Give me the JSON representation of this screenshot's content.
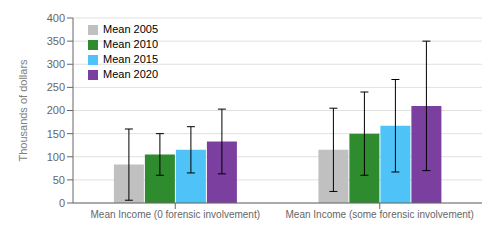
{
  "chart_data": {
    "type": "bar",
    "categories": [
      "Mean Income (0 forensic involvement)",
      "Mean Income (some forensic involvement)"
    ],
    "series": [
      {
        "name": "Mean 2005",
        "color": "#c0c0c0",
        "values": [
          83,
          115
        ],
        "errors": [
          77,
          90
        ]
      },
      {
        "name": "Mean 2010",
        "color": "#2e8b2e",
        "values": [
          105,
          150
        ],
        "errors": [
          45,
          90
        ]
      },
      {
        "name": "Mean 2015",
        "color": "#4fc3f7",
        "values": [
          115,
          167
        ],
        "errors": [
          50,
          100
        ]
      },
      {
        "name": "Mean 2020",
        "color": "#7b3fa0",
        "values": [
          133,
          210
        ],
        "errors": [
          70,
          140
        ]
      }
    ],
    "ylabel": "Thousands of dollars",
    "ylim": [
      0,
      400
    ],
    "yticks": [
      0,
      50,
      100,
      150,
      200,
      250,
      300,
      350,
      400
    ],
    "grid": true,
    "legend": "upper left"
  }
}
